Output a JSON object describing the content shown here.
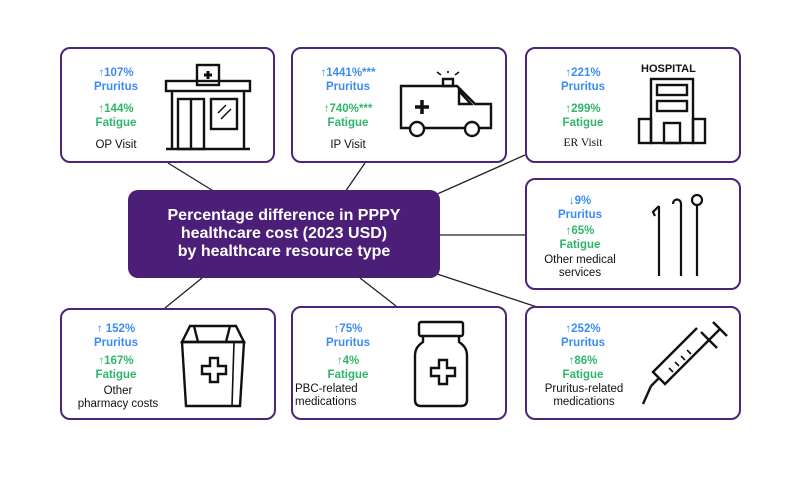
{
  "title": "Percentage difference in PPPY\nhealthcare cost (2023 USD)\nby healthcare resource type",
  "colors": {
    "accent": "#4b1f78",
    "border": "#4b2577",
    "pruritus": "#3d8cf2",
    "fatigue": "#2fb56a"
  },
  "cards": {
    "op_visit": {
      "name": "OP Visit",
      "pruritus_value": "↑107%",
      "pruritus_label": "Pruritus",
      "fatigue_value": "↑144%",
      "fatigue_label": "Fatigue",
      "icon": "clinic-building-icon"
    },
    "ip_visit": {
      "name": "IP Visit",
      "pruritus_value": "↑1441%***",
      "pruritus_label": "Pruritus",
      "fatigue_value": "↑740%***",
      "fatigue_label": "Fatigue",
      "icon": "ambulance-icon"
    },
    "er_visit": {
      "name": "ER Visit",
      "pruritus_value": "↑221%",
      "pruritus_label": "Pruritus",
      "fatigue_value": "↑299%",
      "fatigue_label": "Fatigue",
      "icon": "hospital-icon",
      "icon_text": "HOSPITAL"
    },
    "other_medical": {
      "name": "Other medical\nservices",
      "pruritus_value": "↓9%",
      "pruritus_label": "Pruritus",
      "fatigue_value": "↑65%",
      "fatigue_label": "Fatigue",
      "icon": "dental-tools-icon"
    },
    "other_pharmacy": {
      "name": "Other\npharmacy costs",
      "pruritus_value": "↑ 152%",
      "pruritus_label": "Pruritus",
      "fatigue_value": "↑167%",
      "fatigue_label": "Fatigue",
      "icon": "pharmacy-bag-icon"
    },
    "pbc_meds": {
      "name": "PBC-related\nmedications",
      "pruritus_value": "↑75%",
      "pruritus_label": "Pruritus",
      "fatigue_value": "↑4%",
      "fatigue_label": "Fatigue",
      "icon": "medicine-bottle-icon"
    },
    "pruritus_meds": {
      "name": "Pruritus-related\nmedications",
      "pruritus_value": "↑252%",
      "pruritus_label": "Pruritus",
      "fatigue_value": "↑86%",
      "fatigue_label": "Fatigue",
      "icon": "syringe-icon"
    }
  }
}
